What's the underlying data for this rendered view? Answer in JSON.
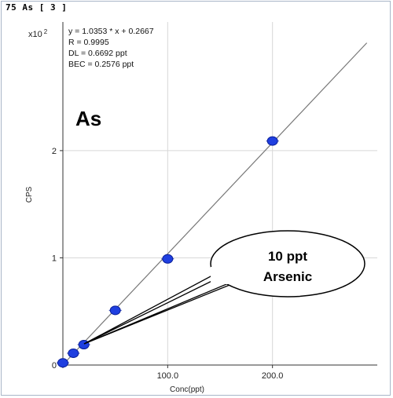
{
  "panel_title": "75 As [ 3 ]",
  "scale_prefix": "x10",
  "scale_exponent": "2",
  "stats": {
    "equation": "y = 1.0353 * x + 0.2667",
    "r": "R = 0.9995",
    "dl": "DL = 0.6692 ppt",
    "bec": "BEC = 0.2576 ppt"
  },
  "element_label": "As",
  "callout": {
    "line1": "10 ppt",
    "line2": "Arsenic"
  },
  "colors": {
    "points": "#1f3fe0",
    "fit_line": "#777777",
    "grid": "#d8d8d8",
    "frame": "#a9b6c8"
  },
  "chart_data": {
    "type": "scatter",
    "title": "",
    "xlabel": "Conc(ppt)",
    "ylabel": "CPS",
    "xlim": [
      0,
      300
    ],
    "ylim": [
      0,
      3.2
    ],
    "x_ticks": [
      {
        "value": 100,
        "label": "100.0"
      },
      {
        "value": 200,
        "label": "200.0"
      }
    ],
    "y_ticks": [
      {
        "value": 0,
        "label": "0"
      },
      {
        "value": 1,
        "label": "1"
      },
      {
        "value": 2,
        "label": "2"
      }
    ],
    "fit": {
      "slope": 1.0353,
      "intercept": 0.2667
    },
    "series": [
      {
        "x": [
          0,
          10,
          20,
          50,
          100,
          200
        ],
        "y": [
          0.02,
          0.11,
          0.19,
          0.51,
          0.99,
          2.09
        ]
      }
    ],
    "grid": true
  }
}
